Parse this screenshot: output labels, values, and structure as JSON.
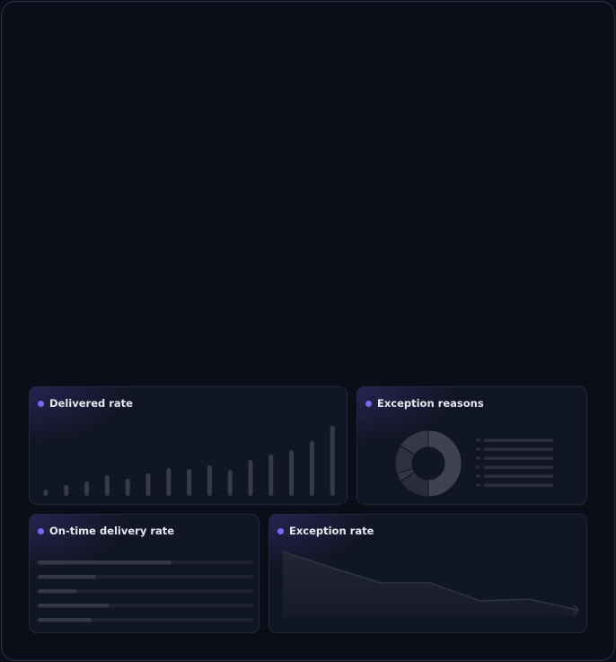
{
  "accent_color": "#7a68f0",
  "cards": {
    "delivered": {
      "title": "Delivered rate"
    },
    "reasons": {
      "title": "Exception reasons"
    },
    "ontime": {
      "title": "On-time delivery rate"
    },
    "exception": {
      "title": "Exception rate"
    }
  },
  "chart_data": [
    {
      "type": "bar",
      "values": [
        7,
        12,
        16,
        23,
        19,
        25,
        31,
        30,
        34,
        29,
        40,
        46,
        51,
        61,
        78
      ]
    },
    {
      "type": "pie",
      "values": [
        50,
        16,
        4,
        14,
        16
      ],
      "legend_rows": 6
    },
    {
      "type": "bar",
      "orientation": "horizontal",
      "values": [
        0.62,
        0.27,
        0.18,
        0.33,
        0.25
      ]
    },
    {
      "type": "area",
      "values": [
        65,
        47,
        30,
        30,
        10,
        12,
        0
      ]
    }
  ]
}
